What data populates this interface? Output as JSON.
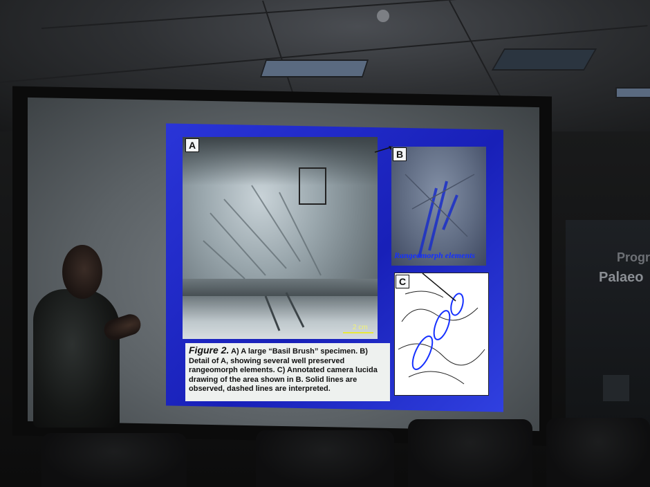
{
  "slide": {
    "panel_a_label": "A",
    "panel_b_label": "B",
    "panel_c_label": "C",
    "scale_label": "2 cm",
    "panel_b_annotation": "Rangeomorph elements",
    "caption_figure": "Figure 2.",
    "caption_text": " A) A large “Basil Brush” specimen. B) Detail of A, showing  several well preserved rangeomorph elements. C) Annotated camera lucida drawing of the area shown in B. Solid lines are observed, dashed lines are interpreted."
  },
  "room_sign": {
    "line1": "Progr",
    "line2": "Palaeo"
  },
  "colors": {
    "slide_background": "#1f28c8",
    "annotation_blue": "#1530ff",
    "scale_yellow": "#e8e83a"
  }
}
